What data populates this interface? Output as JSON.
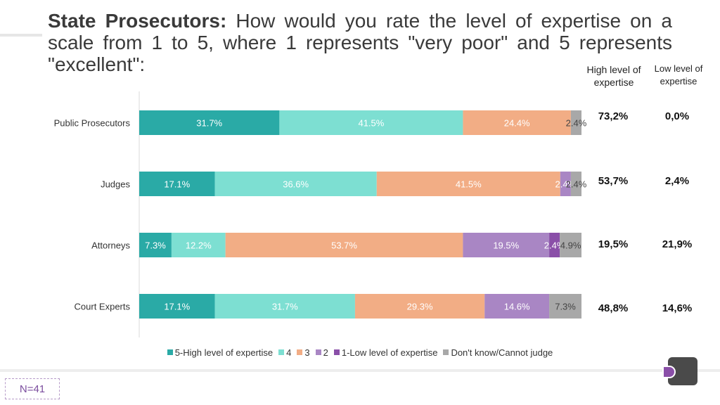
{
  "title": {
    "bold": "State Prosecutors:",
    "rest": " How would you rate the level of expertise on a scale from 1 to 5, where 1 represents \"very poor\" and 5 represents \"excellent\":"
  },
  "summary_headers": {
    "high": "High level of expertise",
    "low": "Low level of expertise"
  },
  "summary_rows": [
    {
      "high": "73,2%",
      "low": "0,0%"
    },
    {
      "high": "53,7%",
      "low": "2,4%"
    },
    {
      "high": "19,5%",
      "low": "21,9%"
    },
    {
      "high": "48,8%",
      "low": "14,6%"
    }
  ],
  "colors": {
    "s5": "#2aaaa6",
    "s4": "#7ddfd2",
    "s3": "#f2ad85",
    "s2": "#a986c4",
    "s1": "#8a4fa8",
    "dk": "#a8a8a8",
    "accent": "#7b4d9e"
  },
  "chart_data": {
    "type": "bar",
    "orientation": "horizontal",
    "stacked": true,
    "categories": [
      "Public Prosecutors",
      "Judges",
      "Attorneys",
      "Court Experts"
    ],
    "series": [
      {
        "name": "5-High level of expertise",
        "values": [
          31.7,
          17.1,
          7.3,
          17.1
        ],
        "labels": [
          "31.7%",
          "17.1%",
          "7.3%",
          "17.1%"
        ]
      },
      {
        "name": "4",
        "values": [
          41.5,
          36.6,
          12.2,
          31.7
        ],
        "labels": [
          "41.5%",
          "36.6%",
          "12.2%",
          "31.7%"
        ]
      },
      {
        "name": "3",
        "values": [
          24.4,
          41.5,
          53.7,
          29.3
        ],
        "labels": [
          "24.4%",
          "41.5%",
          "53.7%",
          "29.3%"
        ]
      },
      {
        "name": "2",
        "values": [
          0,
          2.4,
          19.5,
          14.6
        ],
        "labels": [
          "",
          "2.4%",
          "19.5%",
          "14.6%"
        ]
      },
      {
        "name": "1-Low level of expertise",
        "values": [
          0,
          0,
          2.4,
          0
        ],
        "labels": [
          "",
          "",
          "2.4%",
          ""
        ]
      },
      {
        "name": "Don't know/Cannot judge",
        "values": [
          2.4,
          2.4,
          4.9,
          7.3
        ],
        "labels": [
          "2.4%",
          "2.4%",
          "4.9%",
          "7.3%"
        ]
      }
    ],
    "xlim": [
      0,
      100
    ],
    "legend": "bottom",
    "grid": false
  },
  "footer": {
    "sample_size": "N=41"
  },
  "logo": "brand-logo-icon"
}
